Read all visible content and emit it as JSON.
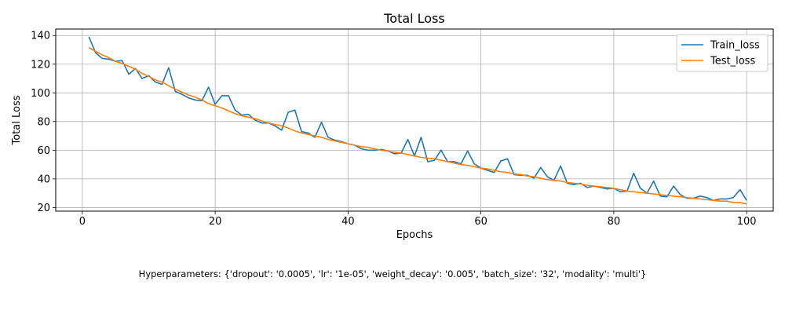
{
  "chart_data": {
    "type": "line",
    "title": "Total Loss",
    "xlabel": "Epochs",
    "ylabel": "Total Loss",
    "xlim": [
      -4,
      104
    ],
    "ylim": [
      17.5,
      144.5
    ],
    "xticks": [
      0,
      20,
      40,
      60,
      80,
      100
    ],
    "yticks": [
      20,
      40,
      60,
      80,
      100,
      120,
      140
    ],
    "grid": true,
    "legend_position": "top-right",
    "x": [
      1,
      2,
      3,
      4,
      5,
      6,
      7,
      8,
      9,
      10,
      11,
      12,
      13,
      14,
      15,
      16,
      17,
      18,
      19,
      20,
      21,
      22,
      23,
      24,
      25,
      26,
      27,
      28,
      29,
      30,
      31,
      32,
      33,
      34,
      35,
      36,
      37,
      38,
      39,
      40,
      41,
      42,
      43,
      44,
      45,
      46,
      47,
      48,
      49,
      50,
      51,
      52,
      53,
      54,
      55,
      56,
      57,
      58,
      59,
      60,
      61,
      62,
      63,
      64,
      65,
      66,
      67,
      68,
      69,
      70,
      71,
      72,
      73,
      74,
      75,
      76,
      77,
      78,
      79,
      80,
      81,
      82,
      83,
      84,
      85,
      86,
      87,
      88,
      89,
      90,
      91,
      92,
      93,
      94,
      95,
      96,
      97,
      98,
      99,
      100
    ],
    "series": [
      {
        "name": "Train_loss",
        "color": "#1f77b4",
        "values": [
          139,
          128,
          124,
          123.5,
          122,
          122.5,
          113,
          117,
          110,
          112,
          107.5,
          106,
          117.5,
          101,
          99,
          96.5,
          95,
          94.5,
          104,
          92,
          98,
          98,
          88,
          84.5,
          85,
          81,
          79,
          79,
          77,
          74,
          86.5,
          88,
          73,
          72,
          69,
          79.5,
          69,
          67,
          66,
          64.5,
          63.5,
          61,
          60,
          60,
          60.5,
          59.5,
          57.5,
          58,
          67.5,
          56,
          69,
          52,
          53,
          60,
          52,
          52,
          50.5,
          59.5,
          50.5,
          47.5,
          46,
          44.5,
          52.5,
          54,
          43,
          42.5,
          42.5,
          40.5,
          48,
          41.5,
          39,
          49,
          37,
          36,
          37,
          34,
          35,
          34,
          33,
          33.5,
          31,
          31.5,
          44,
          33.5,
          30,
          38.5,
          28,
          27.5,
          35,
          29,
          26.5,
          26.5,
          28,
          27,
          25,
          26,
          26,
          27,
          32.5,
          25
        ]
      },
      {
        "name": "Test_loss",
        "color": "#ff7f0e",
        "values": [
          131.5,
          129,
          126.5,
          124.5,
          122,
          120.5,
          118.5,
          116.5,
          113.5,
          111.5,
          109,
          107.5,
          105,
          102.5,
          100.5,
          98.5,
          97,
          95,
          92.5,
          91,
          89.5,
          87.5,
          85.5,
          84,
          83,
          82,
          80.5,
          79,
          78,
          77,
          75.5,
          73.5,
          72,
          71,
          70,
          69,
          67.5,
          66.5,
          65.5,
          64.5,
          63.5,
          62.5,
          62,
          61,
          60,
          59.5,
          58.5,
          58,
          57,
          56,
          55,
          54.5,
          54,
          53,
          52,
          51,
          50,
          49.5,
          48.5,
          47.5,
          47,
          46,
          45,
          44.5,
          43.5,
          43,
          42,
          41.5,
          40.5,
          39.5,
          39,
          38.5,
          37.5,
          37,
          36.5,
          35.5,
          35,
          34.5,
          34,
          33.5,
          32.5,
          31.5,
          31,
          30.5,
          30,
          29.5,
          29,
          28.5,
          28,
          27.5,
          27,
          26.5,
          26,
          25.5,
          25,
          24.5,
          24.5,
          23.5,
          23.5,
          22.5
        ]
      }
    ]
  },
  "footer": {
    "hyperparameters_text": "Hyperparameters: {'dropout': '0.0005', 'lr': '1e-05', 'weight_decay': '0.005', 'batch_size': '32', 'modality': 'multi'}"
  }
}
